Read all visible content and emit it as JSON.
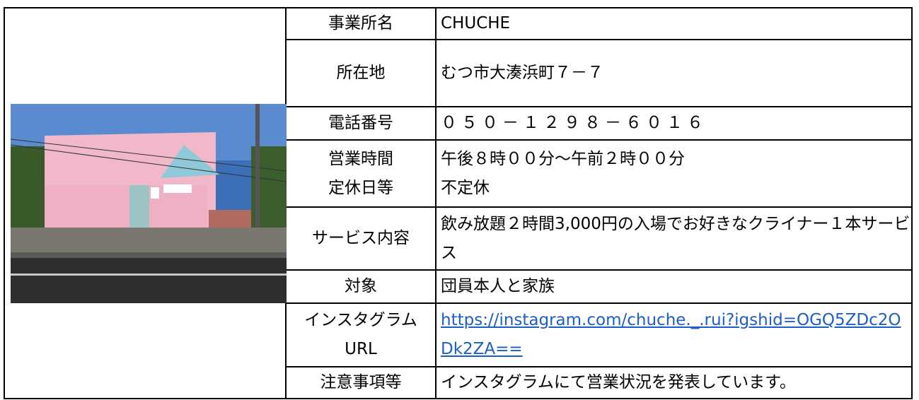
{
  "table": {
    "rows": [
      {
        "label": [
          "事業所名"
        ],
        "value": [
          "CHUCHE"
        ]
      },
      {
        "label": [
          "所在地"
        ],
        "value": [
          "むつ市大湊浜町７－７"
        ]
      },
      {
        "label": [
          "電話番号"
        ],
        "value": [
          "０５０－１２９８－６０１６"
        ]
      },
      {
        "label": [
          "営業時間",
          "定休日等"
        ],
        "value": [
          "午後８時００分～午前２時００分",
          "不定休"
        ]
      },
      {
        "label": [
          "サービス内容"
        ],
        "value": [
          "飲み放題２時間3,000円の入場でお好きなクライナー１本サービス"
        ]
      },
      {
        "label": [
          "対象"
        ],
        "value": [
          "団員本人と家族"
        ]
      },
      {
        "label": [
          "インスタグラム",
          "URL"
        ],
        "value": [
          "https://instagram.com/chuche._.rui?igshid=OGQ5ZDc2ODk2ZA=="
        ],
        "link": true
      },
      {
        "label": [
          "注意事項等"
        ],
        "value": [
          "インスタグラムにて営業状況を発表しています。"
        ]
      }
    ]
  }
}
